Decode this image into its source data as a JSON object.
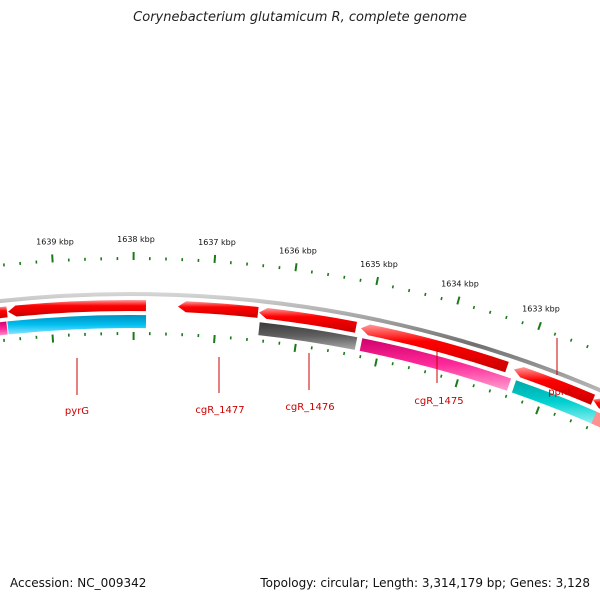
{
  "title": "Corynebacterium glutamicum R, complete genome",
  "footer": {
    "accession": "Accession: NC_009342",
    "summary": "Topology: circular; Length: 3,314,179 bp; Genes: 3,128"
  },
  "ticks": [
    "1639 kbp",
    "1638 kbp",
    "1637 kbp",
    "1636 kbp",
    "1635 kbp",
    "1634 kbp",
    "1633 kbp"
  ],
  "genes": [
    {
      "label": "pyrG",
      "strand": "-",
      "color": "#ff0000",
      "pair_color": "#00b7e8"
    },
    {
      "label": "cgR_1477",
      "strand": "-",
      "color": "#ff0000",
      "pair_color": ""
    },
    {
      "label": "cgR_1476",
      "strand": "-",
      "color": "#ff0000",
      "pair_color": "#555555"
    },
    {
      "label": "cgR_1475",
      "strand": "-",
      "color": "#ff0000",
      "pair_color": "#ff1493"
    },
    {
      "label": "ppnK",
      "strand": "-",
      "color": "#ff0000",
      "pair_color": "#00c8c8"
    }
  ],
  "colors": {
    "backbone": "#808080",
    "tick": "#1a7a1a",
    "label": "#cc0000"
  }
}
